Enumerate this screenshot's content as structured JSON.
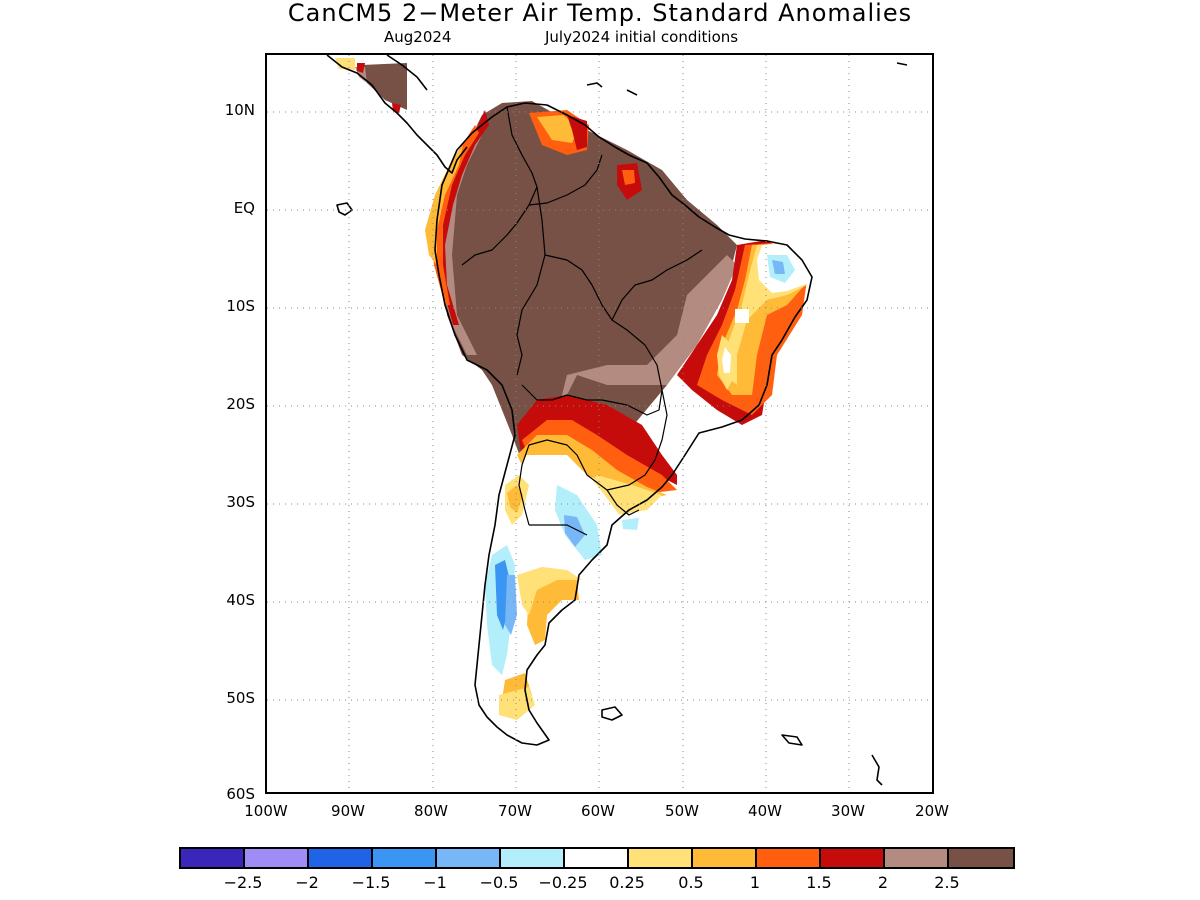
{
  "title": "CanCM5 2−Meter Air Temp. Standard Anomalies",
  "subtitle_left": "Aug2024",
  "subtitle_right": "July2024 initial conditions",
  "y_axis_labels": [
    "10N",
    "EQ",
    "10S",
    "20S",
    "30S",
    "40S",
    "50S",
    "60S"
  ],
  "x_axis_labels": [
    "100W",
    "90W",
    "80W",
    "70W",
    "60W",
    "50W",
    "40W",
    "30W",
    "20W"
  ],
  "colorbar": {
    "colors": [
      "#3a26b8",
      "#9f8cf5",
      "#1f63e6",
      "#3b95f2",
      "#78b7f7",
      "#b3eefb",
      "#ffffff",
      "#ffe178",
      "#ffbb38",
      "#ff5f0f",
      "#c60b0b",
      "#b48b80",
      "#775145"
    ],
    "labels": [
      "−2.5",
      "−2",
      "−1.5",
      "−1",
      "−0.5",
      "−0.25",
      "0.25",
      "0.5",
      "1",
      "1.5",
      "2",
      "2.5"
    ]
  },
  "map": {
    "region": "South America",
    "lon_range": [
      -100,
      -20
    ],
    "lat_range": [
      -60,
      16
    ],
    "grid": "dotted",
    "colors": {
      "brown": "#775145",
      "tan": "#b48b80",
      "darkred": "#c60b0b",
      "orange": "#ff5f0f",
      "lightorange": "#ffbb38",
      "yellow": "#ffe178",
      "lightcyan": "#b3eefb",
      "lightblue": "#78b7f7",
      "blue": "#3b95f2"
    }
  }
}
